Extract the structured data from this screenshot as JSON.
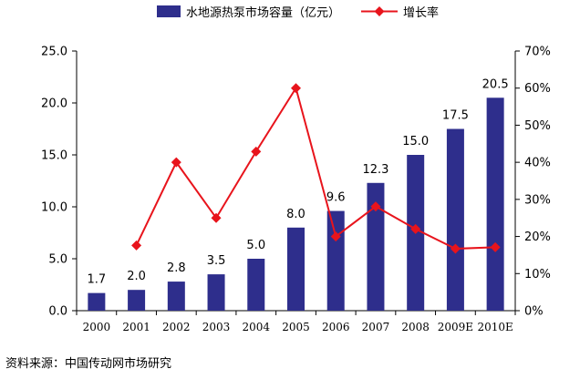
{
  "chart_data": {
    "type": "bar+line",
    "categories": [
      "2000",
      "2001",
      "2002",
      "2003",
      "2004",
      "2005",
      "2006",
      "2007",
      "2008",
      "2009E",
      "2010E"
    ],
    "series": [
      {
        "name": "水地源热泵市场容量（亿元）",
        "type": "bar",
        "axis": "left",
        "values": [
          1.7,
          2.0,
          2.8,
          3.5,
          5.0,
          8.0,
          9.6,
          12.3,
          15.0,
          17.5,
          20.5
        ],
        "labels": [
          "1.7",
          "2.0",
          "2.8",
          "3.5",
          "5.0",
          "8.0",
          "9.6",
          "12.3",
          "15.0",
          "17.5",
          "20.5"
        ],
        "color": "#2e2e8c"
      },
      {
        "name": "增长率",
        "type": "line",
        "axis": "right",
        "values": [
          null,
          17.6,
          40.0,
          25.0,
          42.9,
          60.0,
          20.0,
          28.1,
          22.0,
          16.7,
          17.1
        ],
        "color": "#e8141c"
      }
    ],
    "left_axis": {
      "range": [
        0,
        25
      ],
      "ticks": [
        0,
        5,
        10,
        15,
        20,
        25
      ],
      "tick_labels": [
        "0.0",
        "5.0",
        "10.0",
        "15.0",
        "20.0",
        "25.0"
      ]
    },
    "right_axis": {
      "range": [
        0,
        70
      ],
      "ticks": [
        0,
        10,
        20,
        30,
        40,
        50,
        60,
        70
      ],
      "tick_labels": [
        "0%",
        "10%",
        "20%",
        "30%",
        "40%",
        "50%",
        "60%",
        "70%"
      ]
    },
    "legend_position": "top-right",
    "grid": false
  },
  "source": "资料来源：中国传动网市场研究"
}
